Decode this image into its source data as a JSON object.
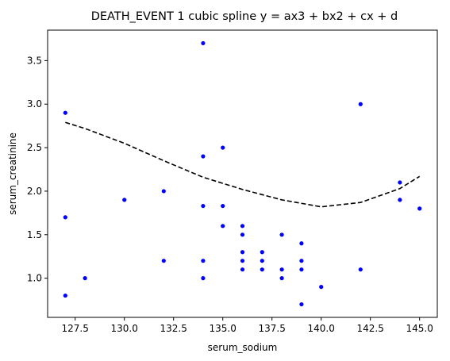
{
  "chart_data": {
    "type": "scatter",
    "title": "DEATH_EVENT 1 cubic spline  y = ax3 + bx2 + cx + d",
    "xlabel": "serum_sodium",
    "ylabel": "serum_creatinine",
    "xlim": [
      126.1,
      145.9
    ],
    "ylim": [
      0.55,
      3.85
    ],
    "xticks": [
      127.5,
      130.0,
      132.5,
      135.0,
      137.5,
      140.0,
      142.5,
      145.0
    ],
    "xtick_labels": [
      "127.5",
      "130.0",
      "132.5",
      "135.0",
      "137.5",
      "140.0",
      "142.5",
      "145.0"
    ],
    "yticks": [
      1.0,
      1.5,
      2.0,
      2.5,
      3.0,
      3.5
    ],
    "ytick_labels": [
      "1.0",
      "1.5",
      "2.0",
      "2.5",
      "3.0",
      "3.5"
    ],
    "grid": false,
    "colors": {
      "points": "#0000ff",
      "curve": "#000000"
    },
    "series": [
      {
        "kind": "scatter",
        "points": [
          [
            127,
            2.9
          ],
          [
            127,
            1.7
          ],
          [
            127,
            0.8
          ],
          [
            128,
            1.0
          ],
          [
            130,
            1.9
          ],
          [
            132,
            2.0
          ],
          [
            132,
            1.2
          ],
          [
            134,
            3.7
          ],
          [
            134,
            2.4
          ],
          [
            134,
            1.83
          ],
          [
            134,
            1.2
          ],
          [
            134,
            1.0
          ],
          [
            135,
            2.5
          ],
          [
            135,
            1.83
          ],
          [
            135,
            1.6
          ],
          [
            136,
            1.6
          ],
          [
            136,
            1.5
          ],
          [
            136,
            1.3
          ],
          [
            136,
            1.2
          ],
          [
            136,
            1.1
          ],
          [
            137,
            1.3
          ],
          [
            137,
            1.2
          ],
          [
            137,
            1.1
          ],
          [
            138,
            1.5
          ],
          [
            138,
            1.1
          ],
          [
            138,
            1.0
          ],
          [
            139,
            1.4
          ],
          [
            139,
            1.2
          ],
          [
            139,
            1.1
          ],
          [
            139,
            0.7
          ],
          [
            140,
            0.9
          ],
          [
            142,
            3.0
          ],
          [
            142,
            1.1
          ],
          [
            144,
            2.1
          ],
          [
            144,
            1.9
          ],
          [
            145,
            1.8
          ]
        ]
      },
      {
        "kind": "line",
        "style": "dashed",
        "x": [
          127,
          128,
          130,
          132,
          134,
          136,
          138,
          140,
          142,
          144,
          145
        ],
        "y": [
          2.79,
          2.72,
          2.55,
          2.35,
          2.16,
          2.02,
          1.9,
          1.82,
          1.87,
          2.03,
          2.17
        ]
      }
    ]
  }
}
